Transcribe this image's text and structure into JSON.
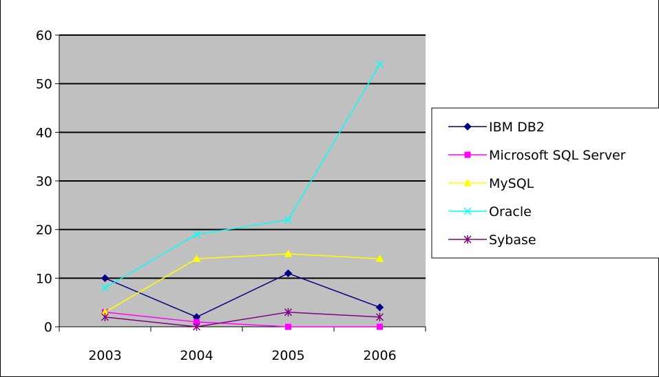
{
  "chart_data": {
    "type": "line",
    "title": "",
    "xlabel": "",
    "ylabel": "",
    "categories": [
      "2003",
      "2004",
      "2005",
      "2006"
    ],
    "ylim": [
      0,
      60
    ],
    "yticks": [
      "0",
      "10",
      "20",
      "30",
      "40",
      "50",
      "60"
    ],
    "grid": true,
    "legend_position": "right",
    "plot_background": "#c0c0c0",
    "series": [
      {
        "name": "IBM DB2",
        "values": [
          10,
          2,
          11,
          4
        ],
        "color": "#000080",
        "marker": "diamond"
      },
      {
        "name": "Microsoft SQL Server",
        "values": [
          3,
          1,
          0,
          0
        ],
        "color": "#ff00ff",
        "marker": "square"
      },
      {
        "name": "MySQL",
        "values": [
          3,
          14,
          15,
          14
        ],
        "color": "#ffff00",
        "marker": "triangle"
      },
      {
        "name": "Oracle",
        "values": [
          8,
          19,
          22,
          54
        ],
        "color": "#00ffff",
        "marker": "x"
      },
      {
        "name": "Sybase",
        "values": [
          2,
          0,
          3,
          2
        ],
        "color": "#800080",
        "marker": "star"
      }
    ]
  }
}
